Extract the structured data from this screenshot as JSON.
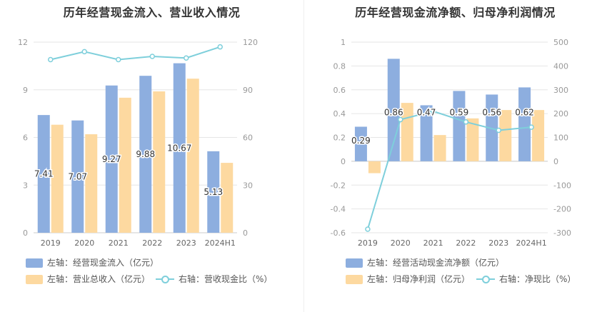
{
  "colors": {
    "blue": "#8daedf",
    "orange": "#fdd9a0",
    "line": "#7ecfdb",
    "grid": "#e6e6e6",
    "axis": "#999999"
  },
  "chart_data": [
    {
      "type": "bar",
      "title": "历年经营现金流入、营业收入情况",
      "categories": [
        "2019",
        "2020",
        "2021",
        "2022",
        "2023",
        "2024H1"
      ],
      "y_left": {
        "ylim": [
          0,
          12
        ],
        "ticks": [
          "0",
          "3",
          "6",
          "9",
          "12"
        ]
      },
      "y_right": {
        "ylim": [
          0,
          120
        ],
        "ticks": [
          "0",
          "30",
          "60",
          "90",
          "120"
        ]
      },
      "grid": true,
      "legend_position": "bottom",
      "series": [
        {
          "name": "左轴：经营现金流入（亿元）",
          "type": "bar",
          "axis": "left",
          "values": [
            7.41,
            7.07,
            9.27,
            9.88,
            10.67,
            5.13
          ],
          "labels": [
            "7.41",
            "7.07",
            "9.27",
            "9.88",
            "10.67",
            "5.13"
          ]
        },
        {
          "name": "左轴：营业总收入（亿元）",
          "type": "bar",
          "axis": "left",
          "values": [
            6.8,
            6.2,
            8.5,
            8.9,
            9.7,
            4.4
          ]
        },
        {
          "name": "右轴：营收现金比（%）",
          "type": "line",
          "axis": "right",
          "values": [
            109,
            114,
            109,
            111,
            110,
            117
          ]
        }
      ]
    },
    {
      "type": "bar",
      "title": "历年经营现金流净额、归母净利润情况",
      "categories": [
        "2019",
        "2020",
        "2021",
        "2022",
        "2023",
        "2024H1"
      ],
      "y_left": {
        "ylim": [
          -0.6,
          1
        ],
        "ticks": [
          "-0.6",
          "-0.4",
          "-0.2",
          "0",
          "0.2",
          "0.4",
          "0.6",
          "0.8",
          "1"
        ]
      },
      "y_right": {
        "ylim": [
          -300,
          500
        ],
        "ticks": [
          "-300",
          "-200",
          "-100",
          "0",
          "100",
          "200",
          "300",
          "400",
          "500"
        ]
      },
      "grid": true,
      "legend_position": "bottom",
      "series": [
        {
          "name": "左轴：经营活动现金流净额（亿元）",
          "type": "bar",
          "axis": "left",
          "values": [
            0.29,
            0.86,
            0.47,
            0.59,
            0.56,
            0.62
          ],
          "labels": [
            "0.29",
            "0.86",
            "0.47",
            "0.59",
            "0.56",
            "0.62"
          ]
        },
        {
          "name": "左轴：归母净利润（亿元）",
          "type": "bar",
          "axis": "left",
          "values": [
            -0.1,
            0.49,
            0.22,
            0.36,
            0.43,
            0.43
          ]
        },
        {
          "name": "右轴：净现比（%）",
          "type": "line",
          "axis": "right",
          "values": [
            -285,
            175,
            210,
            165,
            130,
            143
          ]
        }
      ]
    }
  ]
}
